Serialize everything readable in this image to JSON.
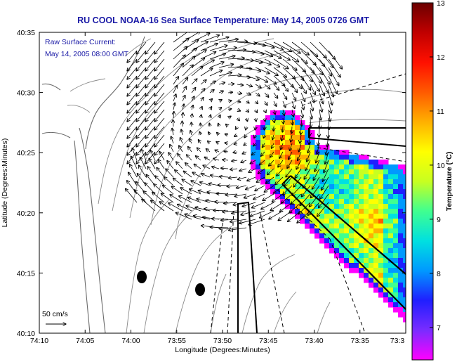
{
  "chart_data": {
    "type": "map",
    "title": "RU COOL  NOAA-16  Sea Surface Temperature:  May 14, 2005 0726 GMT",
    "annotation_lines": [
      "Raw Surface Current:",
      "May 14, 2005 08:00 GMT"
    ],
    "xlabel": "Longitude (Degrees:Minutes)",
    "ylabel": "Latitude (Degrees:Minutes)",
    "x_ticks": [
      "74:10",
      "74:05",
      "74:00",
      "73:55",
      "73:50",
      "73:45",
      "73:40",
      "73:35",
      "73:3"
    ],
    "y_ticks": [
      "40:35",
      "40:30",
      "40:25",
      "40:20",
      "40:15",
      "40:10"
    ],
    "xlim_minutes_west": [
      10,
      30
    ],
    "ylim_minutes_north": [
      10,
      35
    ],
    "scale_label": "50 cm/s",
    "colorbar": {
      "label": "Temperature (°C)",
      "ticks": [
        "13",
        "12",
        "11",
        "10",
        "9",
        "8",
        "7"
      ],
      "range": [
        6.4,
        13
      ],
      "colors": [
        "#ff00ff",
        "#7a2cff",
        "#1f1fff",
        "#0099ff",
        "#00e0e0",
        "#40ff90",
        "#c8ff20",
        "#ffff00",
        "#ffb000",
        "#ff5a00",
        "#ff1000",
        "#c00000",
        "#6b0000"
      ]
    }
  }
}
